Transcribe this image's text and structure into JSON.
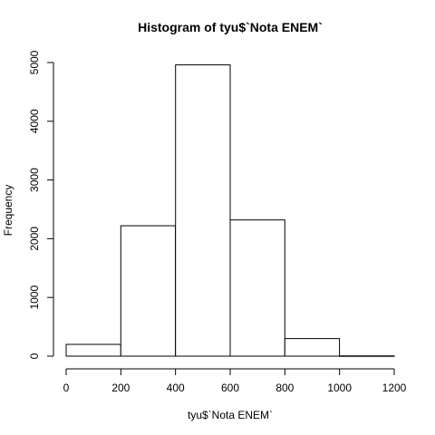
{
  "chart_data": {
    "type": "bar",
    "title": "Histogram of tyu$`Nota ENEM`",
    "xlabel": "tyu$`Nota ENEM`",
    "ylabel": "Frequency",
    "bins": [
      {
        "from": 0,
        "to": 200,
        "count": 200
      },
      {
        "from": 200,
        "to": 400,
        "count": 2220
      },
      {
        "from": 400,
        "to": 600,
        "count": 4960
      },
      {
        "from": 600,
        "to": 800,
        "count": 2320
      },
      {
        "from": 800,
        "to": 1000,
        "count": 300
      },
      {
        "from": 1000,
        "to": 1200,
        "count": 5
      }
    ],
    "xlim": [
      0,
      1200
    ],
    "ylim": [
      0,
      5000
    ],
    "xticks": [
      "0",
      "200",
      "400",
      "600",
      "800",
      "1000",
      "1200"
    ],
    "yticks": [
      "0",
      "1000",
      "2000",
      "3000",
      "4000",
      "5000"
    ],
    "bar_fill": "#ffffff",
    "bar_stroke": "#000000",
    "grid": false,
    "legend": "none"
  }
}
